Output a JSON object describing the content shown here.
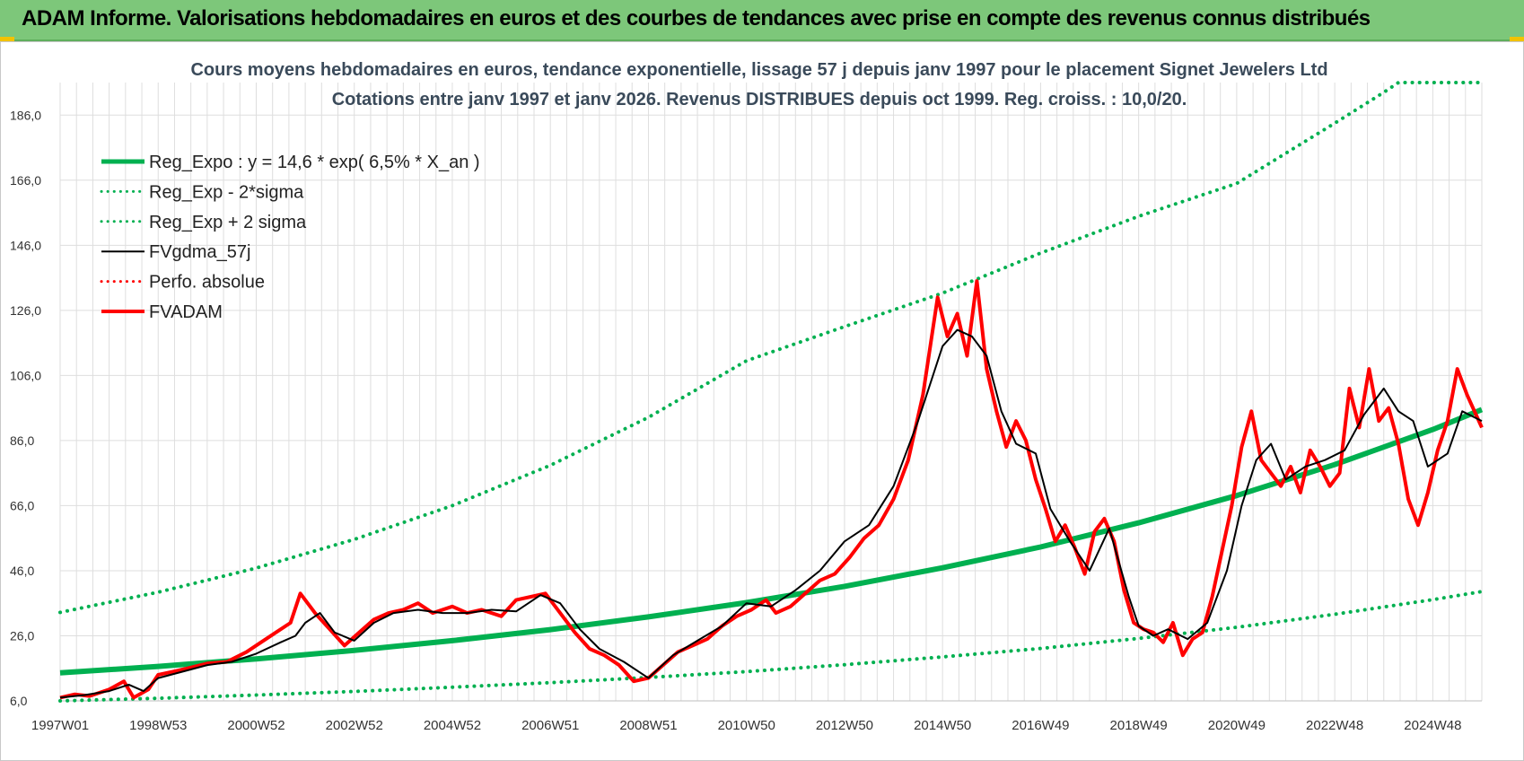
{
  "banner": {
    "title": "ADAM Informe. Valorisations hebdomadaires en euros et des courbes de tendances avec prise en compte des revenus connus distribués"
  },
  "colors": {
    "banner_bg": "#7dc77a",
    "reg_expo": "#00b050",
    "fvgdma": "#000000",
    "fvadam": "#ff0000"
  },
  "chart_data": {
    "type": "line",
    "title": "Cours moyens hebdomadaires en euros, tendance exponentielle, lissage 57 j depuis janv 1997  pour le placement Signet Jewelers Ltd",
    "subtitle": "Cotations entre janv 1997 et janv 2026. Revenus DISTRIBUES depuis oct 1999.  Reg. croiss. : 10,0/20.",
    "xlabel": "",
    "ylabel": "",
    "xlim": [
      1997.0,
      2026.0
    ],
    "ylim": [
      6.0,
      196.0
    ],
    "grid": true,
    "legend_position": "top-left",
    "y_ticks": [
      "6,0",
      "26,0",
      "46,0",
      "66,0",
      "86,0",
      "106,0",
      "126,0",
      "146,0",
      "166,0",
      "186,0"
    ],
    "y_tick_values": [
      6,
      26,
      46,
      66,
      86,
      106,
      126,
      146,
      166,
      186
    ],
    "x_ticks": [
      "1997W01",
      "1998W53",
      "2000W52",
      "2002W52",
      "2004W52",
      "2006W51",
      "2008W51",
      "2010W50",
      "2012W50",
      "2014W50",
      "2016W49",
      "2018W49",
      "2020W49",
      "2022W48",
      "2024W48"
    ],
    "x_tick_values": [
      1997.0,
      1999.0,
      2001.0,
      2003.0,
      2005.0,
      2007.0,
      2009.0,
      2011.0,
      2013.0,
      2015.0,
      2017.0,
      2019.0,
      2021.0,
      2023.0,
      2025.0
    ],
    "legend": [
      {
        "name": "Reg_Expo : y = 14,6 * exp( 6,5% *  X_an )",
        "style": "solid-thick",
        "color": "#00b050"
      },
      {
        "name": "Reg_Exp - 2*sigma",
        "style": "dotted",
        "color": "#00b050"
      },
      {
        "name": "Reg_Exp + 2 sigma",
        "style": "dotted",
        "color": "#00b050"
      },
      {
        "name": "FVgdma_57j",
        "style": "solid",
        "color": "#000000"
      },
      {
        "name": "Perfo. absolue",
        "style": "dotted",
        "color": "#ff0000"
      },
      {
        "name": "FVADAM",
        "style": "solid-thick",
        "color": "#ff0000"
      }
    ],
    "series": [
      {
        "name": "Reg_Expo : y = 14,6 * exp( 6,5% *  X_an )",
        "style": "solid-thick",
        "color": "#00b050",
        "x": [
          1997,
          1999,
          2001,
          2003,
          2005,
          2007,
          2009,
          2011,
          2013,
          2015,
          2017,
          2019,
          2021,
          2023,
          2025,
          2026
        ],
        "y": [
          14.6,
          16.6,
          18.9,
          21.5,
          24.5,
          27.9,
          31.8,
          36.2,
          41.2,
          46.9,
          53.3,
          60.7,
          69.1,
          78.6,
          89.4,
          95.5
        ]
      },
      {
        "name": "Reg_Exp - 2*sigma",
        "style": "dotted",
        "color": "#00b050",
        "x": [
          1997,
          1999,
          2001,
          2003,
          2005,
          2007,
          2009,
          2011,
          2013,
          2015,
          2017,
          2019,
          2021,
          2023,
          2025,
          2026
        ],
        "y": [
          6.0,
          6.8,
          7.8,
          8.9,
          10.2,
          11.6,
          13.2,
          15.0,
          17.1,
          19.5,
          22.1,
          25.2,
          28.6,
          32.6,
          37.1,
          39.6
        ]
      },
      {
        "name": "Reg_Exp + 2 sigma",
        "style": "dotted",
        "color": "#00b050",
        "x": [
          1997,
          1999,
          2001,
          2003,
          2005,
          2007,
          2009,
          2011,
          2013,
          2015,
          2017,
          2019,
          2021,
          2023,
          2024,
          2024.3,
          2026
        ],
        "y": [
          33.2,
          39.4,
          46.8,
          55.6,
          66.0,
          78.4,
          93.1,
          110.5,
          121.0,
          131.3,
          143.6,
          154.9,
          165.0,
          183.5,
          193.0,
          196.0,
          196.0
        ]
      },
      {
        "name": "FVgdma_57j",
        "style": "solid",
        "color": "#000000",
        "x": [
          1997,
          1997.5,
          1998,
          1998.4,
          1998.7,
          1999,
          1999.5,
          2000,
          2000.5,
          2001,
          2001.5,
          2001.8,
          2002,
          2002.3,
          2002.6,
          2003,
          2003.4,
          2003.8,
          2004.3,
          2004.8,
          2005.3,
          2005.8,
          2006.3,
          2006.8,
          2007.2,
          2007.6,
          2008,
          2008.5,
          2009,
          2009.5,
          2010,
          2010.5,
          2011,
          2011.5,
          2012,
          2012.5,
          2013,
          2013.5,
          2014,
          2014.5,
          2015,
          2015.3,
          2015.6,
          2015.9,
          2016.2,
          2016.5,
          2016.9,
          2017.2,
          2017.6,
          2018,
          2018.4,
          2018.8,
          2019,
          2019.3,
          2019.6,
          2020,
          2020.4,
          2020.8,
          2021.1,
          2021.4,
          2021.7,
          2022,
          2022.4,
          2022.8,
          2023.2,
          2023.6,
          2024,
          2024.3,
          2024.6,
          2024.9,
          2025.3,
          2025.6,
          2026
        ],
        "y": [
          7.0,
          7.8,
          9.0,
          11.0,
          9.0,
          13.0,
          15.0,
          17.0,
          18.0,
          20.5,
          24.0,
          26.0,
          30.0,
          33.0,
          27.0,
          24.5,
          30.0,
          33.0,
          34.0,
          33.0,
          33.0,
          34.0,
          33.5,
          38.5,
          36.0,
          28.0,
          22.0,
          18.0,
          13.0,
          20.0,
          24.5,
          29.0,
          36.0,
          35.0,
          40.0,
          46.0,
          55.0,
          60.0,
          72.0,
          92.0,
          115.0,
          120.0,
          118.0,
          112.0,
          95.0,
          85.0,
          82.0,
          65.0,
          55.0,
          46.0,
          59.0,
          38.0,
          29.0,
          26.0,
          28.0,
          25.0,
          30.0,
          46.0,
          66.0,
          80.0,
          85.0,
          74.0,
          78.0,
          80.0,
          83.0,
          94.0,
          102.0,
          95.0,
          92.0,
          78.0,
          82.0,
          95.0,
          92.0
        ]
      },
      {
        "name": "Perfo. absolue",
        "style": "dotted",
        "color": "#ff0000",
        "x": [],
        "y": []
      },
      {
        "name": "FVADAM",
        "style": "solid-thick",
        "color": "#ff0000",
        "x": [
          1997,
          1997.3,
          1997.6,
          1998,
          1998.3,
          1998.5,
          1998.8,
          1999,
          1999.3,
          1999.6,
          2000,
          2000.4,
          2000.8,
          2001.1,
          2001.4,
          2001.7,
          2001.9,
          2002.2,
          2002.5,
          2002.8,
          2003.1,
          2003.4,
          2003.7,
          2004,
          2004.3,
          2004.6,
          2005,
          2005.3,
          2005.6,
          2006,
          2006.3,
          2006.6,
          2006.9,
          2007.2,
          2007.5,
          2007.8,
          2008.1,
          2008.4,
          2008.7,
          2009,
          2009.3,
          2009.6,
          2009.9,
          2010.2,
          2010.5,
          2010.8,
          2011.1,
          2011.4,
          2011.6,
          2011.9,
          2012.2,
          2012.5,
          2012.8,
          2013.1,
          2013.4,
          2013.7,
          2014,
          2014.3,
          2014.6,
          2014.9,
          2015.1,
          2015.3,
          2015.5,
          2015.7,
          2015.9,
          2016.1,
          2016.3,
          2016.5,
          2016.7,
          2016.9,
          2017.1,
          2017.3,
          2017.5,
          2017.7,
          2017.9,
          2018.1,
          2018.3,
          2018.5,
          2018.7,
          2018.9,
          2019.1,
          2019.3,
          2019.5,
          2019.7,
          2019.9,
          2020.1,
          2020.3,
          2020.5,
          2020.7,
          2020.9,
          2021.1,
          2021.3,
          2021.5,
          2021.7,
          2021.9,
          2022.1,
          2022.3,
          2022.5,
          2022.7,
          2022.9,
          2023.1,
          2023.3,
          2023.5,
          2023.7,
          2023.9,
          2024.1,
          2024.3,
          2024.5,
          2024.7,
          2024.9,
          2025.1,
          2025.3,
          2025.5,
          2025.7,
          2026
        ],
        "y": [
          7.0,
          8.0,
          7.5,
          9.5,
          12.0,
          7.0,
          9.5,
          14.0,
          15.0,
          16.0,
          17.5,
          18.0,
          21.0,
          24.0,
          27.0,
          30.0,
          39.0,
          33.0,
          28.0,
          23.0,
          27.0,
          31.0,
          33.0,
          34.0,
          36.0,
          33.0,
          35.0,
          33.0,
          34.0,
          32.0,
          37.0,
          38.0,
          39.0,
          33.0,
          27.0,
          22.0,
          20.0,
          17.0,
          12.0,
          13.0,
          17.0,
          21.0,
          23.0,
          25.0,
          29.0,
          32.0,
          34.0,
          37.0,
          33.0,
          35.0,
          39.0,
          43.0,
          45.0,
          50.0,
          56.0,
          60.0,
          68.0,
          80.0,
          100.0,
          130.0,
          118.0,
          125.0,
          112.0,
          135.0,
          108.0,
          95.0,
          84.0,
          92.0,
          86.0,
          74.0,
          65.0,
          55.0,
          60.0,
          53.0,
          45.0,
          58.0,
          62.0,
          55.0,
          40.0,
          30.0,
          28.0,
          27.0,
          24.0,
          30.0,
          20.0,
          25.0,
          27.0,
          38.0,
          52.0,
          66.0,
          84.0,
          95.0,
          80.0,
          76.0,
          72.0,
          78.0,
          70.0,
          83.0,
          78.0,
          72.0,
          76.0,
          102.0,
          90.0,
          108.0,
          92.0,
          96.0,
          85.0,
          68.0,
          60.0,
          70.0,
          83.0,
          92.0,
          108.0,
          100.0,
          90.0
        ]
      }
    ]
  }
}
